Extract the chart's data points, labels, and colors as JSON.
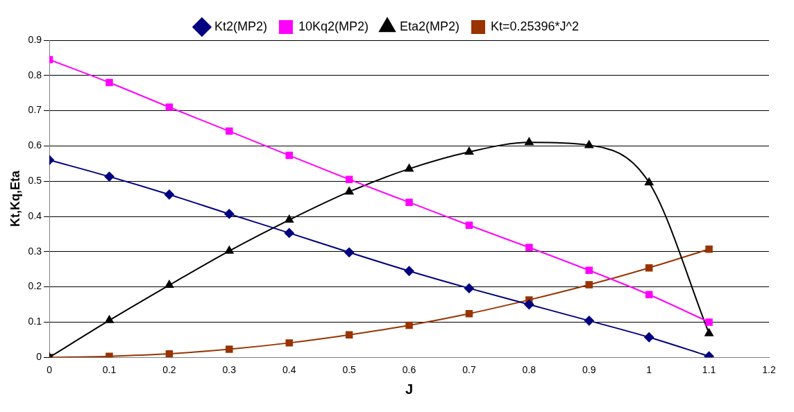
{
  "chart_data": {
    "type": "line",
    "xlabel": "J",
    "ylabel": "Kt,Kq,Eta",
    "x": [
      0,
      0.1,
      0.2,
      0.3,
      0.4,
      0.5,
      0.6,
      0.7,
      0.8,
      0.9,
      1,
      1.1
    ],
    "xlim": [
      0,
      1.2
    ],
    "xticks": [
      0,
      0.1,
      0.2,
      0.3,
      0.4,
      0.5,
      0.6,
      0.7,
      0.8,
      0.9,
      1,
      1.1,
      1.2
    ],
    "ylim": [
      0,
      0.9
    ],
    "yticks": [
      0,
      0.1,
      0.2,
      0.3,
      0.4,
      0.5,
      0.6,
      0.7,
      0.8,
      0.9
    ],
    "grid": "y",
    "legend": "top",
    "series": [
      {
        "name": "Kt2(MP2)",
        "color": "#000080",
        "marker": "diamond",
        "values": [
          0.56,
          0.513,
          0.462,
          0.407,
          0.353,
          0.298,
          0.245,
          0.196,
          0.15,
          0.104,
          0.057,
          0.003
        ]
      },
      {
        "name": "10Kq2(MP2)",
        "color": "#ff00ff",
        "marker": "square",
        "values": [
          0.845,
          0.78,
          0.71,
          0.642,
          0.573,
          0.505,
          0.44,
          0.375,
          0.312,
          0.247,
          0.178,
          0.1
        ]
      },
      {
        "name": "Eta2(MP2)",
        "color": "#000000",
        "marker": "triangle",
        "values": [
          0,
          0.105,
          0.205,
          0.302,
          0.39,
          0.47,
          0.535,
          0.583,
          0.61,
          0.602,
          0.496,
          0.068
        ]
      },
      {
        "name": "Kt=0.25396*J^2",
        "color": "#993300",
        "marker": "square",
        "values": [
          0,
          0.003,
          0.01,
          0.023,
          0.041,
          0.064,
          0.091,
          0.124,
          0.163,
          0.206,
          0.254,
          0.307
        ]
      }
    ]
  }
}
